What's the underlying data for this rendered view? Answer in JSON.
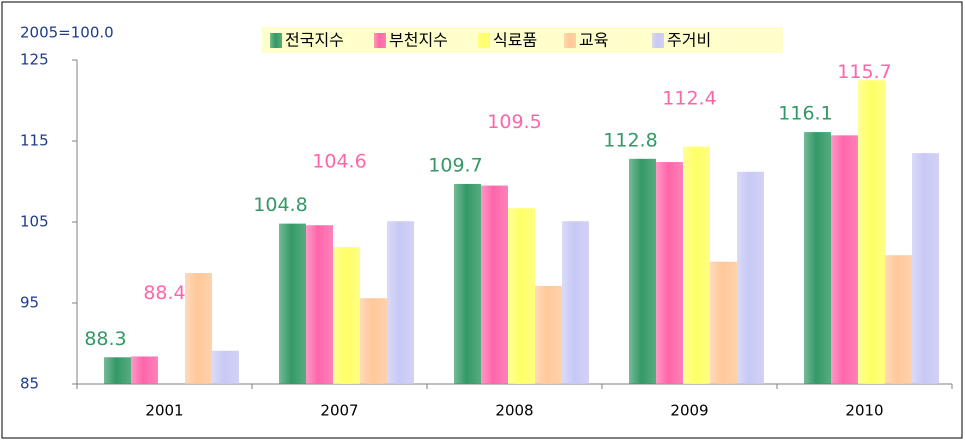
{
  "chart_data": {
    "type": "bar",
    "y_axis_label": "2005=100.0",
    "categories": [
      "2001",
      "2007",
      "2008",
      "2009",
      "2010"
    ],
    "series": [
      {
        "name": "전국지수",
        "color": "#339966",
        "data_labels": true,
        "values": [
          88.3,
          104.8,
          109.7,
          112.8,
          116.1
        ]
      },
      {
        "name": "부천지수",
        "color": "#ff66aa",
        "data_labels": true,
        "values": [
          88.4,
          104.6,
          109.5,
          112.4,
          115.7
        ]
      },
      {
        "name": "식료품",
        "color": "#ffff66",
        "values": [
          null,
          101.9,
          106.7,
          114.3,
          122.5
        ]
      },
      {
        "name": "교육",
        "color": "#ffc89a",
        "values": [
          98.7,
          95.6,
          97.1,
          100.1,
          100.9
        ]
      },
      {
        "name": "주거비",
        "color": "#c8c8f5",
        "values": [
          89.1,
          105.1,
          105.1,
          111.2,
          113.5
        ]
      }
    ],
    "ylim": [
      85,
      125
    ],
    "yticks": [
      85,
      95,
      105,
      115,
      125
    ],
    "legend": "top"
  }
}
